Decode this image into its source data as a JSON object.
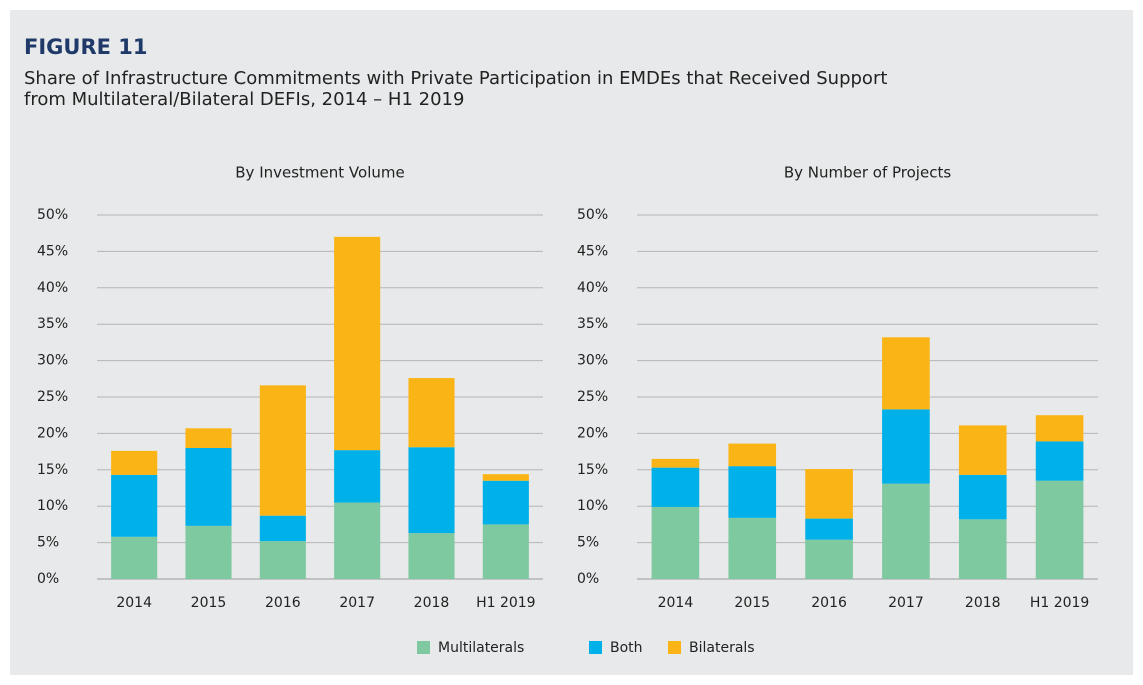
{
  "figure": "FIGURE 11",
  "title": [
    "Share of Infrastructure Commitments with Private Participation in EMDEs that Received Support",
    "from Multilateral/Bilateral DEFIs, 2014 – H1  2019"
  ],
  "legend": [
    {
      "name": "Multilaterals",
      "color": "#7fc9a0"
    },
    {
      "name": "Both",
      "color": "#00b0e8"
    },
    {
      "name": "Bilaterals",
      "color": "#fbb416"
    }
  ],
  "chart_data": [
    {
      "type": "stacked_bar",
      "title": "By Investment Volume",
      "categories": [
        "2014",
        "2015",
        "2016",
        "2017",
        "2018",
        "H1 2019"
      ],
      "series": [
        {
          "values": [
            5.8,
            7.3,
            5.2,
            10.5,
            6.3,
            7.5
          ]
        },
        {
          "values": [
            8.5,
            10.7,
            3.5,
            7.2,
            11.8,
            6.0
          ]
        },
        {
          "values": [
            3.3,
            2.7,
            17.9,
            29.3,
            9.5,
            0.9
          ]
        }
      ],
      "ylim": [
        0,
        50
      ],
      "yticks": [
        {
          "value": 0,
          "label": "0%"
        },
        {
          "value": 5,
          "label": "5%"
        },
        {
          "value": 10,
          "label": "10%"
        },
        {
          "value": 15,
          "label": "15%"
        },
        {
          "value": 20,
          "label": "20%"
        },
        {
          "value": 25,
          "label": "25%"
        },
        {
          "value": 30,
          "label": "30%"
        },
        {
          "value": 35,
          "label": "35%"
        },
        {
          "value": 40,
          "label": "40%"
        },
        {
          "value": 45,
          "label": "45%"
        },
        {
          "value": 50,
          "label": "50%"
        }
      ],
      "grid": true
    },
    {
      "type": "stacked_bar",
      "title": "By Number of Projects",
      "categories": [
        "2014",
        "2015",
        "2016",
        "2017",
        "2018",
        "H1 2019"
      ],
      "series": [
        {
          "values": [
            9.9,
            8.4,
            5.4,
            13.1,
            8.2,
            13.5
          ]
        },
        {
          "values": [
            5.4,
            7.1,
            2.9,
            10.2,
            6.1,
            5.4
          ]
        },
        {
          "values": [
            1.2,
            3.1,
            6.8,
            9.9,
            6.8,
            3.6
          ]
        }
      ],
      "ylim": [
        0,
        50
      ],
      "yticks": [
        {
          "value": 0,
          "label": "0%"
        },
        {
          "value": 5,
          "label": "5%"
        },
        {
          "value": 10,
          "label": "10%"
        },
        {
          "value": 15,
          "label": "15%"
        },
        {
          "value": 20,
          "label": "20%"
        },
        {
          "value": 25,
          "label": "25%"
        },
        {
          "value": 30,
          "label": "30%"
        },
        {
          "value": 35,
          "label": "35%"
        },
        {
          "value": 40,
          "label": "40%"
        },
        {
          "value": 45,
          "label": "45%"
        },
        {
          "value": 50,
          "label": "50%"
        }
      ],
      "grid": true
    }
  ]
}
